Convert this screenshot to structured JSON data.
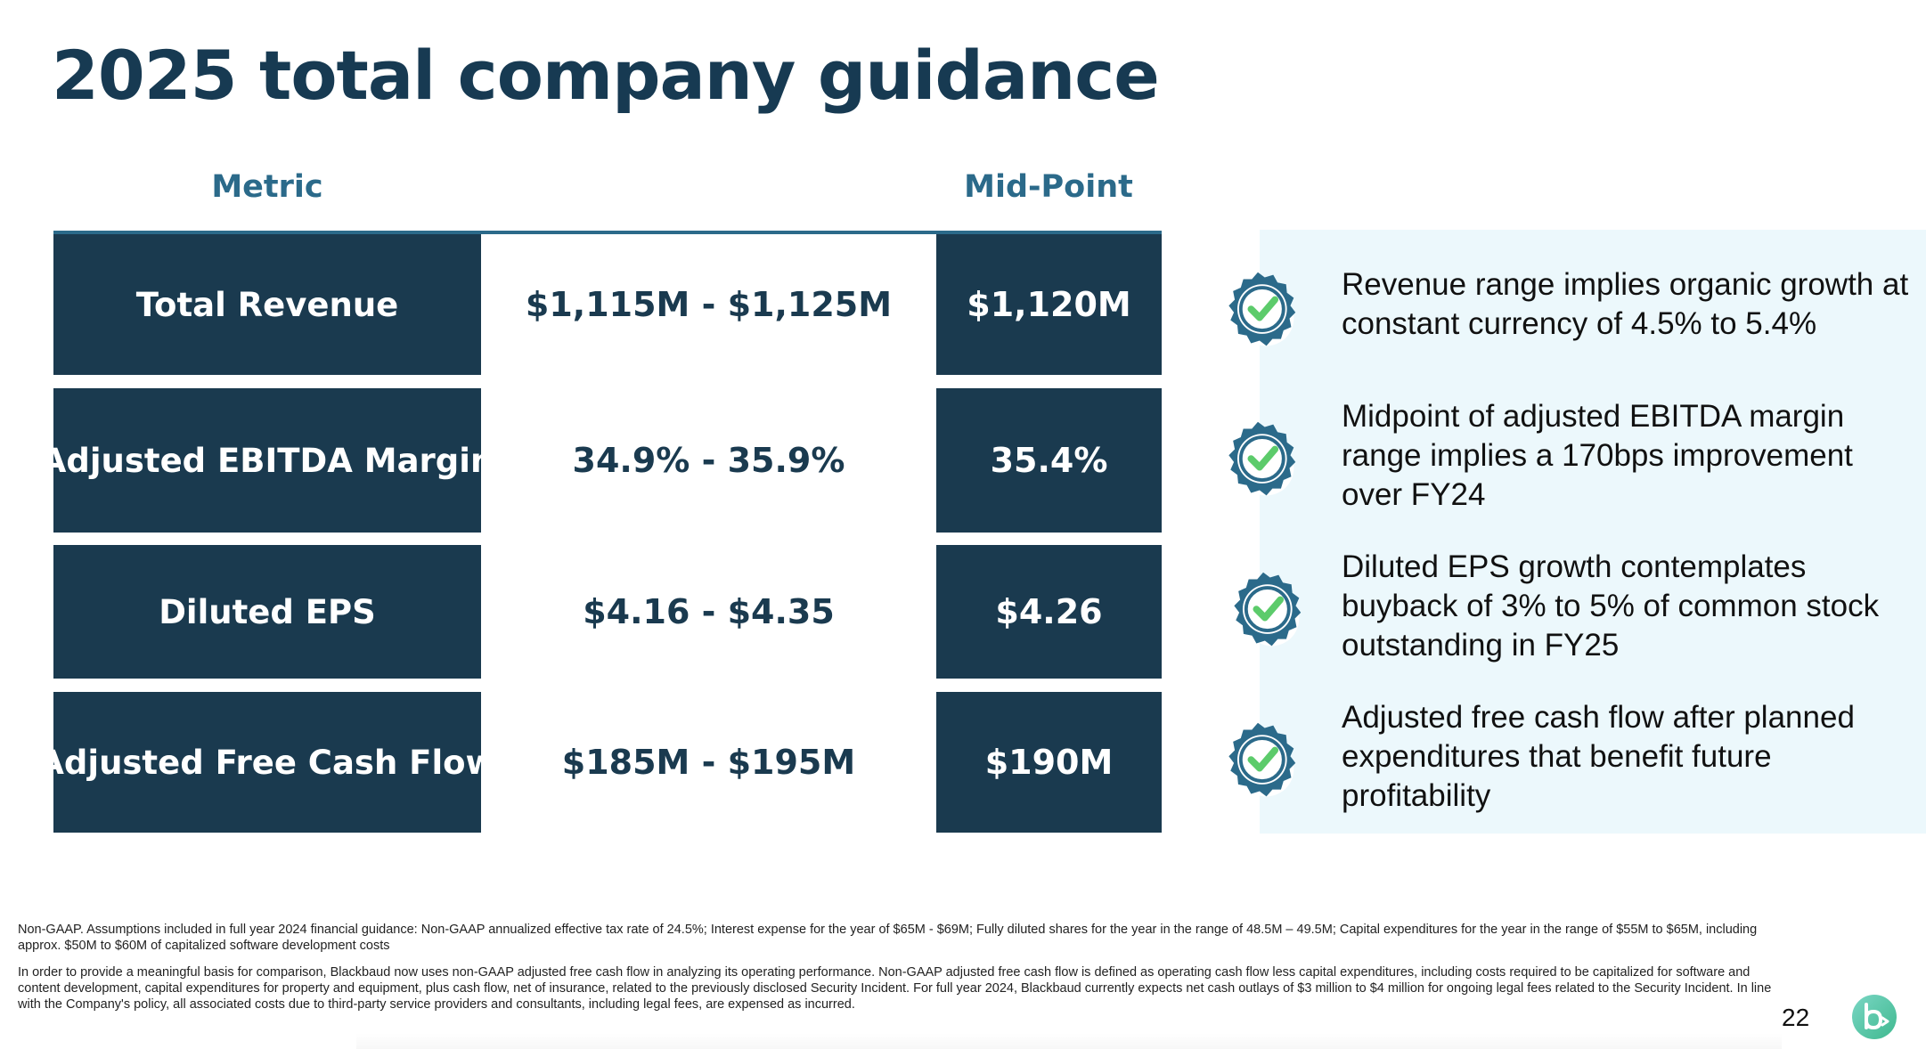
{
  "title": "2025 total company guidance",
  "table": {
    "headers": {
      "metric": "Metric",
      "midpoint": "Mid-Point"
    },
    "rows": [
      {
        "metric": "Total Revenue",
        "range": "$1,115M - $1,125M",
        "midpoint": "$1,120M"
      },
      {
        "metric": "Adjusted EBITDA Margin",
        "range": "34.9% - 35.9%",
        "midpoint": "35.4%"
      },
      {
        "metric": "Diluted EPS",
        "range": "$4.16 - $4.35",
        "midpoint": "$4.26"
      },
      {
        "metric": "Adjusted Free Cash Flow",
        "range": "$185M - $195M",
        "midpoint": "$190M"
      }
    ]
  },
  "notes": [
    {
      "icon": "check-badge-icon",
      "text": "Revenue range implies organic growth at constant currency of 4.5% to 5.4%"
    },
    {
      "icon": "check-badge-icon",
      "text": "Midpoint of adjusted EBITDA margin range implies a 170bps improvement over FY24"
    },
    {
      "icon": "check-badge-icon",
      "text": "Diluted EPS growth contemplates buyback of 3% to 5% of common stock outstanding in FY25"
    },
    {
      "icon": "check-badge-icon",
      "text": "Adjusted free cash flow after planned expenditures that benefit future profitability"
    }
  ],
  "footnotes": [
    "Non-GAAP. Assumptions included in full year 2024 financial guidance: Non-GAAP annualized effective tax rate of 24.5%; Interest expense for the year of $65M - $69M; Fully diluted shares for the year in the range of 48.5M – 49.5M; Capital expenditures for the year in the range of $55M to $65M, including approx. $50M to $60M of capitalized software development costs",
    "In order to provide a meaningful basis for comparison, Blackbaud now uses non-GAAP adjusted free cash flow in analyzing its operating performance. Non-GAAP adjusted free cash flow is defined as operating cash flow less capital expenditures, including costs required to be capitalized for software and content development, capital expenditures for property and equipment, plus cash flow, net of insurance, related to the previously disclosed Security Incident. For full year 2024, Blackbaud currently expects net cash outlays of $3 million to $4 million for ongoing legal fees related to the Security Incident.  In line with the Company's policy, all associated costs due to third-party service providers and consultants, including legal fees, are expensed as incurred."
  ],
  "page_number": "22",
  "colors": {
    "navy": "#1a3a4f",
    "teal": "#2b6a8a",
    "panel": "#ecf8fc",
    "check": "#5ccb6b"
  }
}
